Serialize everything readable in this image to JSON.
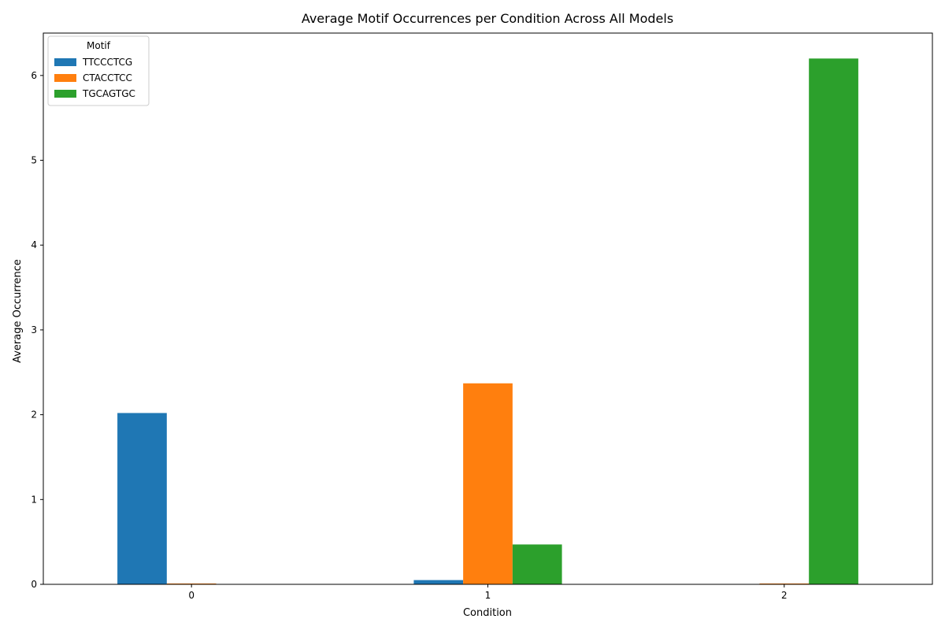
{
  "chart_data": {
    "type": "bar",
    "title": "Average Motif Occurrences per Condition Across All Models",
    "xlabel": "Condition",
    "ylabel": "Average Occurrence",
    "categories": [
      "0",
      "1",
      "2"
    ],
    "ylim": [
      0,
      6.5
    ],
    "yticks": [
      "0",
      "1",
      "2",
      "3",
      "4",
      "5",
      "6"
    ],
    "grid": false,
    "legend": {
      "title": "Motif",
      "placement": "top-left"
    },
    "series": [
      {
        "name": "TTCCCTCG",
        "color": "#1f77b4",
        "values": [
          2.02,
          0.05,
          0.0
        ]
      },
      {
        "name": "CTACCTCC",
        "color": "#ff7f0e",
        "values": [
          0.01,
          2.37,
          0.01
        ]
      },
      {
        "name": "TGCAGTGC",
        "color": "#2ca02c",
        "values": [
          0.0,
          0.47,
          6.2
        ]
      }
    ]
  }
}
